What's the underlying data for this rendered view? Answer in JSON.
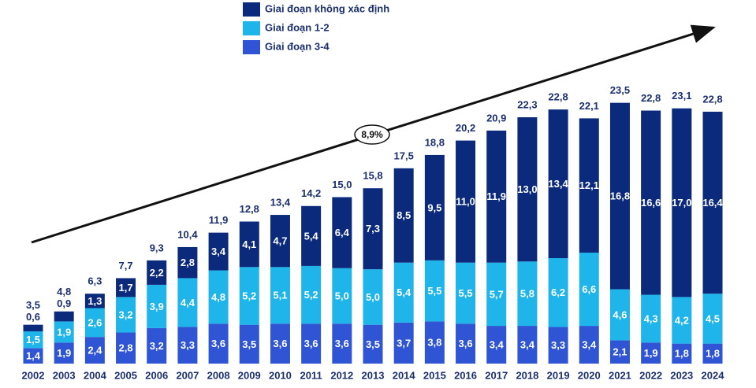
{
  "chart_data": {
    "type": "stacked-bar",
    "categories": [
      "2002",
      "2003",
      "2004",
      "2005",
      "2006",
      "2007",
      "2008",
      "2009",
      "2010",
      "2011",
      "2012",
      "2013",
      "2014",
      "2015",
      "2016",
      "2017",
      "2018",
      "2019",
      "2020",
      "2021",
      "2022",
      "2023",
      "2024"
    ],
    "series": [
      {
        "name": "Giai đoạn không xác định",
        "color": "#0b2a7c",
        "values": [
          0.6,
          0.9,
          1.3,
          1.7,
          2.2,
          2.8,
          3.4,
          4.1,
          4.7,
          5.4,
          6.4,
          7.3,
          8.5,
          9.5,
          11.0,
          11.9,
          13.0,
          13.4,
          12.1,
          16.8,
          16.6,
          17.0,
          16.4
        ],
        "value_labels": [
          "0,6",
          "0,9",
          "1,3",
          "1,7",
          "2,2",
          "2,8",
          "3,4",
          "4,1",
          "4,7",
          "5,4",
          "6,4",
          "7,3",
          "8,5",
          "9,5",
          "11,0",
          "11,9",
          "13,0",
          "13,4",
          "12,1",
          "16,8",
          "16,6",
          "17,0",
          "16,4"
        ]
      },
      {
        "name": "Giai đoạn 1-2",
        "color": "#1fb5ea",
        "values": [
          1.5,
          1.9,
          2.6,
          3.2,
          3.9,
          4.4,
          4.8,
          5.2,
          5.1,
          5.2,
          5.0,
          5.0,
          5.4,
          5.5,
          5.5,
          5.7,
          5.8,
          6.2,
          6.6,
          4.6,
          4.3,
          4.2,
          4.5
        ],
        "value_labels": [
          "1,5",
          "1,9",
          "2,6",
          "3,2",
          "3,9",
          "4,4",
          "4,8",
          "5,2",
          "5,1",
          "5,2",
          "5,0",
          "5,0",
          "5,4",
          "5,5",
          "5,5",
          "5,7",
          "5,8",
          "6,2",
          "6,6",
          "4,6",
          "4,3",
          "4,2",
          "4,5"
        ]
      },
      {
        "name": "Giai đoạn 3-4",
        "color": "#2f55d4",
        "values": [
          1.4,
          1.9,
          2.4,
          2.8,
          3.2,
          3.3,
          3.6,
          3.5,
          3.6,
          3.6,
          3.6,
          3.5,
          3.7,
          3.8,
          3.6,
          3.4,
          3.4,
          3.3,
          3.4,
          2.1,
          1.9,
          1.8,
          1.8
        ],
        "value_labels": [
          "1,4",
          "1,9",
          "2,4",
          "2,8",
          "3,2",
          "3,3",
          "3,6",
          "3,5",
          "3,6",
          "3,6",
          "3,6",
          "3,5",
          "3,7",
          "3,8",
          "3,6",
          "3,4",
          "3,4",
          "3,3",
          "3,4",
          "2,1",
          "1,9",
          "1,8",
          "1,8"
        ]
      }
    ],
    "totals": [
      3.5,
      4.8,
      6.3,
      7.7,
      9.3,
      10.4,
      11.9,
      12.8,
      13.4,
      14.2,
      15.0,
      15.8,
      17.5,
      18.8,
      20.2,
      20.9,
      22.3,
      22.8,
      22.1,
      23.5,
      22.8,
      23.1,
      22.8
    ],
    "totals_labels": [
      "3,5",
      "4,8",
      "6,3",
      "7,7",
      "9,3",
      "10,4",
      "11,9",
      "12,8",
      "13,4",
      "14,2",
      "15,0",
      "15,8",
      "17,5",
      "18,8",
      "20,2",
      "20,9",
      "22,3",
      "22,8",
      "22,1",
      "23,5",
      "22,8",
      "23,1",
      "22,8"
    ],
    "annotation": "8,9%"
  }
}
